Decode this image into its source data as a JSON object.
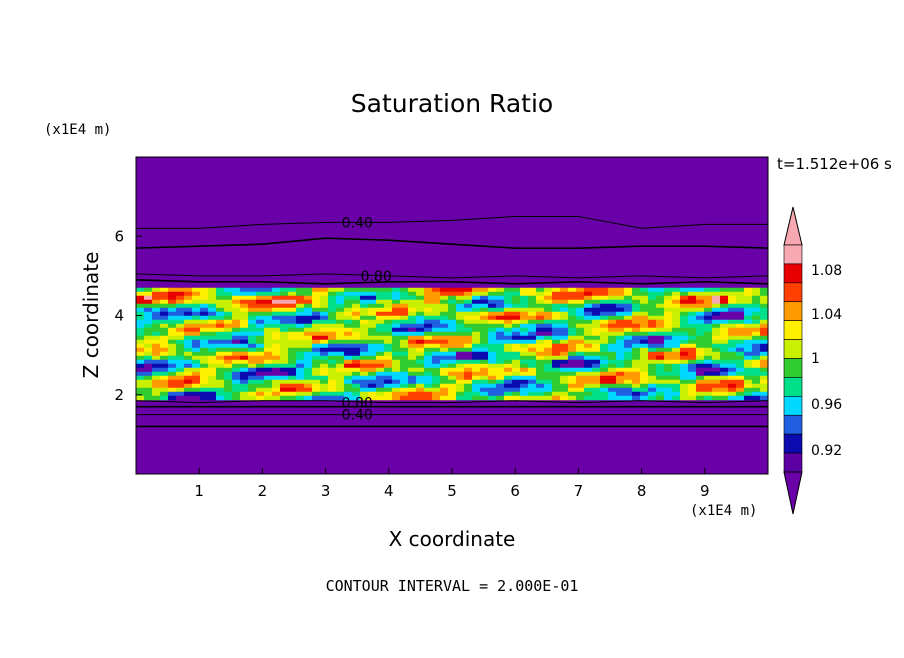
{
  "chart_data": {
    "type": "heatmap",
    "title": "Saturation Ratio",
    "xlabel": "X coordinate",
    "ylabel": "Z coordinate",
    "x_unit": "(x1E4 m)",
    "y_unit": "(x1E4 m)",
    "time_label": "t=1.512e+06 s",
    "footer": "CONTOUR INTERVAL = 2.000E-01",
    "xlim": [
      0,
      10
    ],
    "ylim": [
      0,
      8
    ],
    "x_ticks": [
      "1",
      "2",
      "3",
      "4",
      "5",
      "6",
      "7",
      "8",
      "9"
    ],
    "y_ticks": [
      "2",
      "4",
      "6"
    ],
    "colorbar": {
      "levels": [
        0.9,
        0.92,
        0.94,
        0.96,
        0.98,
        1.0,
        1.02,
        1.04,
        1.06,
        1.08,
        1.1
      ],
      "colors": [
        "#5c00a3",
        "#0b0bb0",
        "#1f5fe0",
        "#00d8ff",
        "#00e08a",
        "#30cc30",
        "#c8f000",
        "#fff000",
        "#ff9a00",
        "#ff4000",
        "#e80000",
        "#f8a8b0"
      ],
      "tick_labels": [
        "1.08",
        "1.04",
        "1",
        "0.96",
        "0.92"
      ],
      "under_color": "#6a00a8",
      "over_color": "#f8a8b0"
    },
    "contour_lines": [
      {
        "label": "0.40",
        "z": [
          6.2,
          6.2,
          6.3,
          6.35,
          6.35,
          6.4,
          6.5,
          6.5,
          6.2,
          6.3,
          6.3
        ]
      },
      {
        "label": "",
        "z": [
          5.7,
          5.75,
          5.8,
          5.95,
          5.9,
          5.8,
          5.7,
          5.7,
          5.75,
          5.75,
          5.7
        ]
      },
      {
        "label": "0.80",
        "z": [
          5.05,
          5.0,
          5.0,
          5.05,
          5.0,
          4.95,
          5.0,
          4.95,
          5.0,
          4.95,
          5.0
        ]
      },
      {
        "label": "",
        "z": [
          4.9,
          4.85,
          4.85,
          4.8,
          4.85,
          4.85,
          4.8,
          4.85,
          4.8,
          4.85,
          4.8
        ]
      },
      {
        "label": "0.80",
        "z": [
          1.85,
          1.8,
          1.85,
          1.85,
          1.8,
          1.8,
          1.85,
          1.8,
          1.85,
          1.8,
          1.85
        ]
      },
      {
        "label": "",
        "z": [
          1.7,
          1.7,
          1.7,
          1.7,
          1.7,
          1.7,
          1.7,
          1.7,
          1.7,
          1.7,
          1.7
        ]
      },
      {
        "label": "0.40",
        "z": [
          1.5,
          1.5,
          1.5,
          1.5,
          1.5,
          1.5,
          1.5,
          1.5,
          1.5,
          1.5,
          1.5
        ]
      },
      {
        "label": "",
        "z": [
          1.2,
          1.2,
          1.2,
          1.2,
          1.2,
          1.2,
          1.2,
          1.2,
          1.2,
          1.2,
          1.2
        ]
      }
    ],
    "background_fill": "#6a00a8",
    "supersaturated_band_z": [
      1.9,
      4.7
    ]
  }
}
